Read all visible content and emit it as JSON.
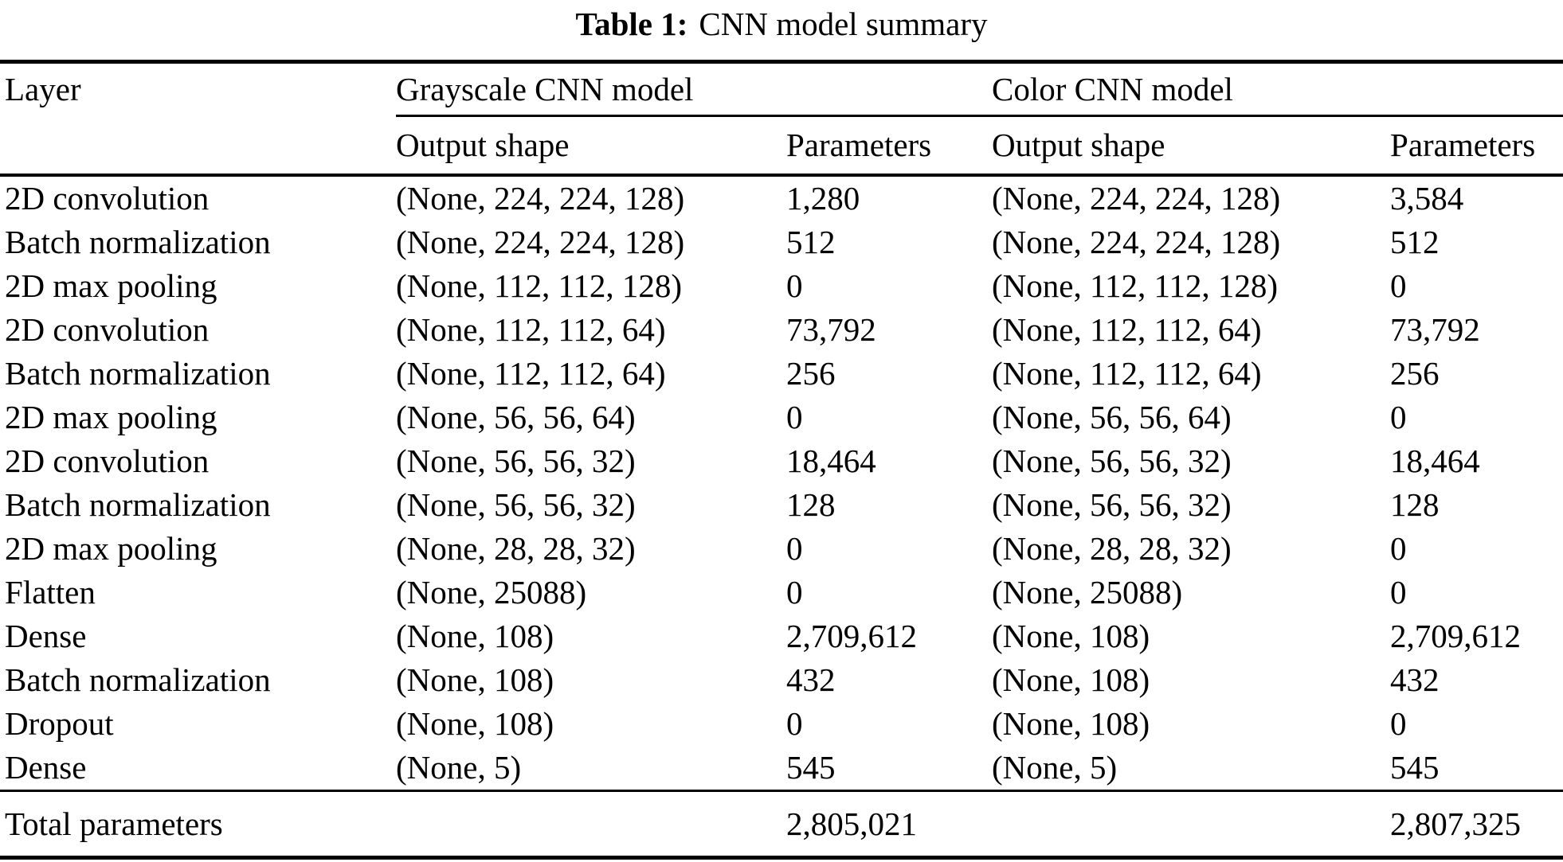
{
  "colors": {
    "text": "#000000",
    "background": "#ffffff"
  },
  "caption": {
    "number": "Table 1:",
    "text": "CNN model summary"
  },
  "table": {
    "layer_header": "Layer",
    "group_headers": {
      "grayscale": "Grayscale CNN model",
      "color": "Color CNN model"
    },
    "sub_headers": {
      "gray_output_shape": "Output shape",
      "gray_parameters": "Parameters",
      "color_output_shape": "Output shape",
      "color_parameters": "Parameters"
    },
    "rows": [
      {
        "layer": "2D convolution",
        "g_shape": "(None, 224, 224, 128)",
        "g_params": "1,280",
        "c_shape": "(None, 224, 224, 128)",
        "c_params": "3,584"
      },
      {
        "layer": "Batch normalization",
        "g_shape": "(None, 224, 224, 128)",
        "g_params": "512",
        "c_shape": "(None, 224, 224, 128)",
        "c_params": "512"
      },
      {
        "layer": "2D max pooling",
        "g_shape": "(None, 112, 112, 128)",
        "g_params": "0",
        "c_shape": "(None, 112, 112, 128)",
        "c_params": "0"
      },
      {
        "layer": "2D convolution",
        "g_shape": "(None, 112, 112, 64)",
        "g_params": "73,792",
        "c_shape": "(None, 112, 112, 64)",
        "c_params": "73,792"
      },
      {
        "layer": "Batch normalization",
        "g_shape": "(None, 112, 112, 64)",
        "g_params": "256",
        "c_shape": "(None, 112, 112, 64)",
        "c_params": "256"
      },
      {
        "layer": "2D max pooling",
        "g_shape": "(None, 56, 56, 64)",
        "g_params": "0",
        "c_shape": "(None, 56, 56, 64)",
        "c_params": "0"
      },
      {
        "layer": "2D convolution",
        "g_shape": "(None, 56, 56, 32)",
        "g_params": "18,464",
        "c_shape": "(None, 56, 56, 32)",
        "c_params": "18,464"
      },
      {
        "layer": "Batch normalization",
        "g_shape": "(None, 56, 56, 32)",
        "g_params": "128",
        "c_shape": "(None, 56, 56, 32)",
        "c_params": "128"
      },
      {
        "layer": "2D max pooling",
        "g_shape": "(None, 28, 28, 32)",
        "g_params": "0",
        "c_shape": "(None, 28, 28, 32)",
        "c_params": "0"
      },
      {
        "layer": "Flatten",
        "g_shape": "(None, 25088)",
        "g_params": "0",
        "c_shape": "(None, 25088)",
        "c_params": "0"
      },
      {
        "layer": "Dense",
        "g_shape": "(None, 108)",
        "g_params": "2,709,612",
        "c_shape": "(None, 108)",
        "c_params": "2,709,612"
      },
      {
        "layer": "Batch normalization",
        "g_shape": "(None, 108)",
        "g_params": "432",
        "c_shape": "(None, 108)",
        "c_params": "432"
      },
      {
        "layer": "Dropout",
        "g_shape": "(None, 108)",
        "g_params": "0",
        "c_shape": "(None, 108)",
        "c_params": "0"
      },
      {
        "layer": "Dense",
        "g_shape": "(None, 5)",
        "g_params": "545",
        "c_shape": "(None, 5)",
        "c_params": "545"
      }
    ],
    "total": {
      "label": "Total parameters",
      "gray_params": "2,805,021",
      "color_params": "2,807,325"
    }
  }
}
